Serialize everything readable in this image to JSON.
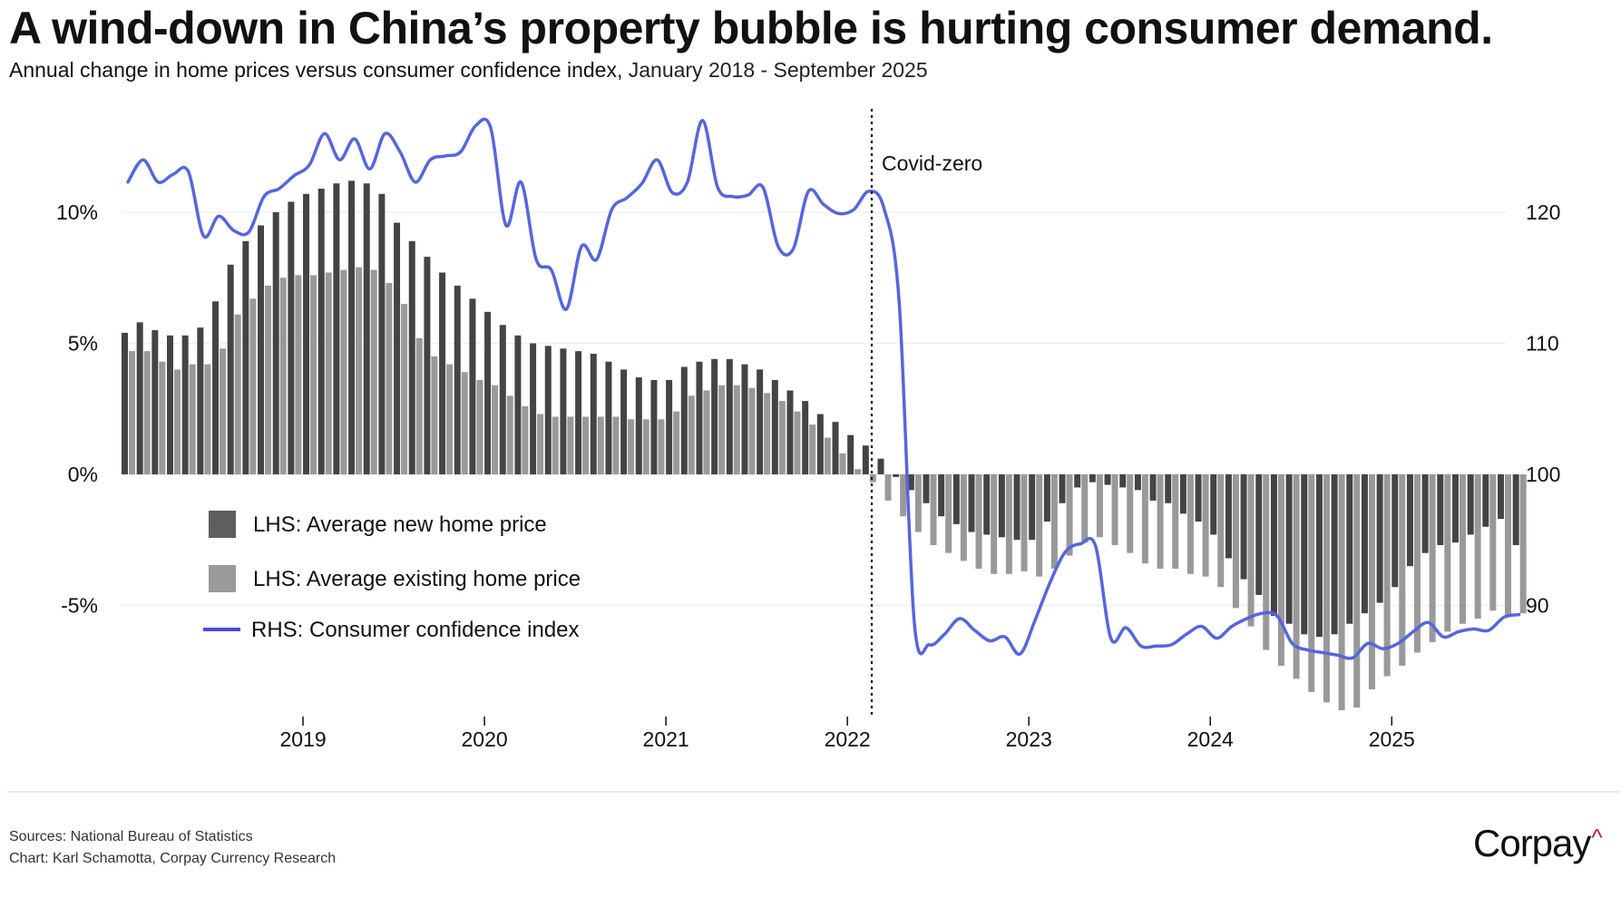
{
  "header": {
    "title": "A wind-down in China’s property bubble is hurting consumer demand.",
    "subtitle_strong": "Annual change in home prices versus consumer confidence index,",
    "subtitle_rest": " January 2018 - September 2025"
  },
  "footer": {
    "sources": "Sources: National Bureau of Statistics",
    "credit": "Chart: Karl Schamotta, Corpay Currency Research",
    "logo_text": "Corpay",
    "logo_mark": "^"
  },
  "colors": {
    "new_home": "#444444",
    "existing_home": "#999999",
    "cci": "#5566dd",
    "legend_new": "#5e5e5e",
    "legend_existing": "#9a9a9a",
    "legend_cci": "#4a4ae0",
    "logo_accent": "#c4173a"
  },
  "chart_data": {
    "type": "bar",
    "title": "A wind-down in China’s property bubble is hurting consumer demand.",
    "subtitle": "Annual change in home prices versus consumer confidence index, January 2018 - September 2025",
    "x_start": "2018-01",
    "x_end": "2025-09",
    "x_ticks": [
      "2019",
      "2020",
      "2021",
      "2022",
      "2023",
      "2024",
      "2025"
    ],
    "left_axis": {
      "label": "LHS",
      "unit": "%",
      "ticks": [
        "10%",
        "5%",
        "0%",
        "-5%"
      ],
      "tick_values": [
        10,
        5,
        0,
        -5
      ],
      "range": [
        -9.5,
        14
      ]
    },
    "right_axis": {
      "label": "RHS",
      "ticks": [
        "120",
        "110",
        "100",
        "90"
      ],
      "tick_values": [
        120,
        110,
        100,
        90
      ],
      "range": [
        81,
        128
      ]
    },
    "grid": true,
    "annotation": {
      "label": "Covid-zero",
      "x": "2022-03"
    },
    "legend": {
      "placement": "lower-left",
      "items": [
        {
          "label": "LHS: Average new home price",
          "type": "square",
          "key": "new_home"
        },
        {
          "label": "LHS: Average existing home price",
          "type": "square",
          "key": "existing_home"
        },
        {
          "label": "RHS: Consumer confidence index",
          "type": "line",
          "key": "cci"
        }
      ]
    },
    "series": [
      {
        "name": "LHS: Average new home price",
        "type": "bar",
        "axis": "left",
        "values": [
          5.4,
          5.8,
          5.5,
          5.3,
          5.3,
          5.6,
          6.6,
          8.0,
          8.9,
          9.5,
          10.0,
          10.4,
          10.7,
          10.9,
          11.1,
          11.2,
          11.1,
          10.7,
          9.6,
          8.9,
          8.3,
          7.7,
          7.2,
          6.7,
          6.2,
          5.7,
          5.3,
          5.0,
          4.9,
          4.8,
          4.7,
          4.6,
          4.3,
          4.0,
          3.7,
          3.6,
          3.6,
          4.1,
          4.3,
          4.4,
          4.4,
          4.2,
          4.0,
          3.6,
          3.2,
          2.8,
          2.3,
          2.0,
          1.5,
          1.1,
          0.6,
          -0.1,
          -0.6,
          -1.1,
          -1.6,
          -1.9,
          -2.2,
          -2.3,
          -2.4,
          -2.5,
          -2.5,
          -1.8,
          -1.1,
          -0.5,
          -0.3,
          -0.4,
          -0.5,
          -0.6,
          -1.0,
          -1.1,
          -1.5,
          -1.8,
          -2.3,
          -3.2,
          -4.0,
          -4.6,
          -5.4,
          -5.7,
          -6.1,
          -6.2,
          -6.1,
          -5.7,
          -5.3,
          -4.9,
          -4.3,
          -3.5,
          -3.0,
          -2.7,
          -2.6,
          -2.3,
          -2.0,
          -1.7,
          -2.7
        ]
      },
      {
        "name": "LHS: Average existing home price",
        "type": "bar",
        "axis": "left",
        "values": [
          4.7,
          4.7,
          4.3,
          4.0,
          4.2,
          4.2,
          4.8,
          6.1,
          6.7,
          7.2,
          7.5,
          7.6,
          7.6,
          7.7,
          7.8,
          7.9,
          7.8,
          7.3,
          6.5,
          5.2,
          4.5,
          4.2,
          3.9,
          3.6,
          3.4,
          3.0,
          2.6,
          2.3,
          2.2,
          2.2,
          2.2,
          2.2,
          2.2,
          2.1,
          2.1,
          2.1,
          2.4,
          3.0,
          3.2,
          3.4,
          3.4,
          3.3,
          3.1,
          2.8,
          2.4,
          1.9,
          1.4,
          0.8,
          0.2,
          -0.3,
          -1.0,
          -1.6,
          -2.2,
          -2.7,
          -3.0,
          -3.3,
          -3.6,
          -3.8,
          -3.8,
          -3.7,
          -3.9,
          -3.6,
          -3.1,
          -2.6,
          -2.4,
          -2.7,
          -3.0,
          -3.4,
          -3.6,
          -3.6,
          -3.8,
          -3.9,
          -4.3,
          -5.1,
          -5.8,
          -6.7,
          -7.3,
          -7.8,
          -8.3,
          -8.7,
          -9.0,
          -8.9,
          -8.2,
          -7.7,
          -7.3,
          -6.8,
          -6.4,
          -6.0,
          -5.7,
          -5.5,
          -5.2,
          -5.4,
          -5.3
        ]
      },
      {
        "name": "RHS: Consumer confidence index",
        "type": "line",
        "axis": "right",
        "values": [
          122.3,
          124.0,
          122.3,
          122.9,
          123.1,
          118.2,
          119.7,
          118.6,
          118.5,
          121.2,
          121.8,
          122.8,
          123.6,
          126.0,
          124.0,
          125.6,
          123.3,
          126.0,
          124.6,
          122.3,
          124.0,
          124.3,
          124.6,
          126.6,
          126.4,
          119.0,
          122.3,
          116.4,
          115.6,
          112.6,
          117.4,
          116.4,
          120.2,
          121.1,
          122.2,
          124.0,
          121.5,
          122.3,
          127.0,
          121.9,
          121.2,
          121.3,
          121.9,
          117.4,
          117.2,
          121.6,
          120.6,
          119.9,
          120.2,
          121.6,
          120.3,
          113.2,
          88.8,
          87.0,
          87.8,
          89.0,
          88.1,
          87.3,
          87.6,
          86.3,
          88.9,
          91.8,
          94.1,
          94.7,
          94.5,
          87.5,
          88.3,
          86.9,
          86.9,
          87.0,
          87.8,
          88.4,
          87.5,
          88.4,
          89.0,
          89.4,
          89.2,
          87.1,
          86.6,
          86.4,
          86.2,
          86.0,
          87.1,
          86.7,
          87.1,
          88.0,
          88.7,
          87.6,
          88.0,
          88.2,
          88.1,
          89.1,
          89.3
        ]
      }
    ]
  }
}
